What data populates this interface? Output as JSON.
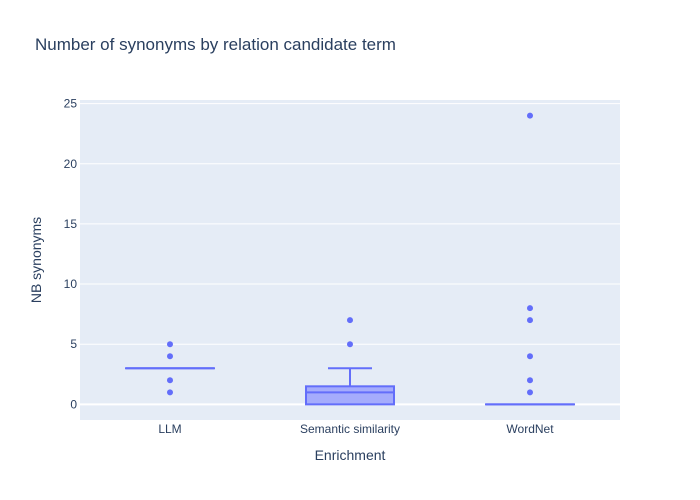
{
  "chart_data": {
    "type": "box",
    "title": "Number of synonyms by relation candidate term",
    "xlabel": "Enrichment",
    "ylabel": "NB synonyms",
    "categories": [
      "LLM",
      "Semantic similarity",
      "WordNet"
    ],
    "ylim": [
      -1.3,
      25.3
    ],
    "yticks": [
      0,
      5,
      10,
      15,
      20,
      25
    ],
    "grid": true,
    "legend": "none",
    "boxes": [
      {
        "category": "LLM",
        "q1": 3,
        "median": 3,
        "q3": 3,
        "lowerfence": 3,
        "upperfence": 3,
        "outliers": [
          1,
          2,
          4,
          5
        ]
      },
      {
        "category": "Semantic similarity",
        "q1": 0,
        "median": 1,
        "q3": 1.5,
        "lowerfence": 0,
        "upperfence": 3,
        "outliers": [
          5,
          7
        ]
      },
      {
        "category": "WordNet",
        "q1": 0,
        "median": 0,
        "q3": 0,
        "lowerfence": 0,
        "upperfence": 0,
        "outliers": [
          1,
          2,
          4,
          7,
          8,
          24
        ]
      }
    ],
    "colors": {
      "series": "#636efa",
      "box_fill": "#a5acfc",
      "plot_bg": "#e5ecf6",
      "text": "#2a3f5f",
      "grid": "#ffffff"
    }
  }
}
